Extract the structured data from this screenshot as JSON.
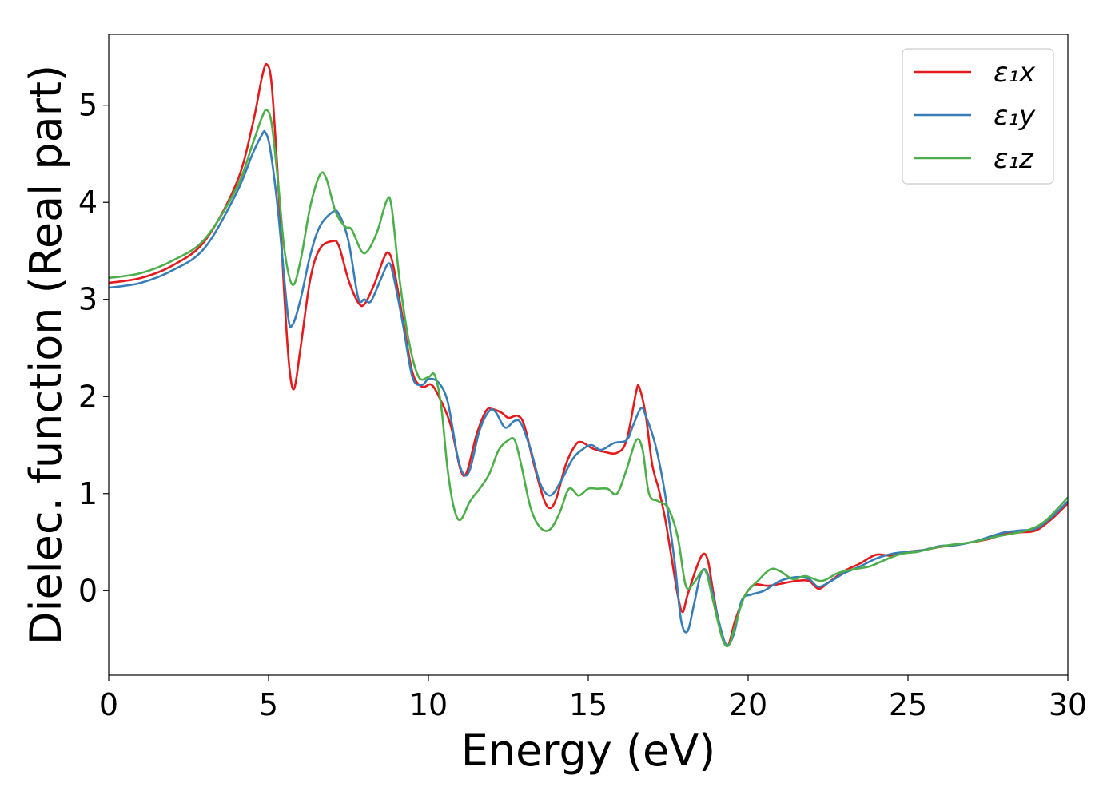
{
  "chart_data": {
    "type": "line",
    "xlabel": "Energy (eV)",
    "ylabel": "Dielec. function (Real part)",
    "xlim": [
      0,
      30
    ],
    "ylim": [
      -0.87,
      5.73
    ],
    "xticks": [
      "0",
      "5",
      "10",
      "15",
      "20",
      "25",
      "30"
    ],
    "yticks": [
      "0",
      "1",
      "2",
      "3",
      "4",
      "5"
    ],
    "grid": false,
    "legend_position": "top-right",
    "series": [
      {
        "name": "ε₁x",
        "color": "#e41a1c",
        "points": [
          [
            0,
            3.17
          ],
          [
            1,
            3.22
          ],
          [
            2,
            3.35
          ],
          [
            3,
            3.6
          ],
          [
            4,
            4.2
          ],
          [
            4.5,
            4.8
          ],
          [
            4.8,
            5.3
          ],
          [
            4.95,
            5.42
          ],
          [
            5.1,
            5.2
          ],
          [
            5.3,
            4.2
          ],
          [
            5.5,
            3.0
          ],
          [
            5.65,
            2.3
          ],
          [
            5.8,
            2.08
          ],
          [
            6,
            2.5
          ],
          [
            6.3,
            3.2
          ],
          [
            6.6,
            3.52
          ],
          [
            7,
            3.6
          ],
          [
            7.2,
            3.55
          ],
          [
            7.5,
            3.2
          ],
          [
            7.8,
            2.97
          ],
          [
            8,
            2.95
          ],
          [
            8.3,
            3.15
          ],
          [
            8.6,
            3.42
          ],
          [
            8.75,
            3.48
          ],
          [
            8.9,
            3.35
          ],
          [
            9.2,
            2.8
          ],
          [
            9.5,
            2.25
          ],
          [
            9.8,
            2.1
          ],
          [
            10.1,
            2.12
          ],
          [
            10.4,
            1.95
          ],
          [
            10.7,
            1.7
          ],
          [
            11,
            1.25
          ],
          [
            11.2,
            1.22
          ],
          [
            11.5,
            1.6
          ],
          [
            11.8,
            1.85
          ],
          [
            12,
            1.87
          ],
          [
            12.3,
            1.83
          ],
          [
            12.5,
            1.78
          ],
          [
            12.8,
            1.8
          ],
          [
            13,
            1.7
          ],
          [
            13.3,
            1.3
          ],
          [
            13.6,
            0.95
          ],
          [
            13.8,
            0.85
          ],
          [
            14,
            0.95
          ],
          [
            14.3,
            1.3
          ],
          [
            14.6,
            1.5
          ],
          [
            14.8,
            1.53
          ],
          [
            15.1,
            1.47
          ],
          [
            15.5,
            1.43
          ],
          [
            15.9,
            1.42
          ],
          [
            16.2,
            1.55
          ],
          [
            16.5,
            2.05
          ],
          [
            16.6,
            2.09
          ],
          [
            16.8,
            1.8
          ],
          [
            17,
            1.3
          ],
          [
            17.2,
            1.05
          ],
          [
            17.4,
            0.75
          ],
          [
            17.6,
            0.35
          ],
          [
            17.8,
            -0.05
          ],
          [
            17.95,
            -0.22
          ],
          [
            18.1,
            -0.05
          ],
          [
            18.4,
            0.25
          ],
          [
            18.6,
            0.38
          ],
          [
            18.75,
            0.3
          ],
          [
            18.9,
            0.0
          ],
          [
            19.1,
            -0.35
          ],
          [
            19.35,
            -0.57
          ],
          [
            19.6,
            -0.3
          ],
          [
            19.9,
            -0.05
          ],
          [
            20.2,
            0.06
          ],
          [
            20.6,
            0.05
          ],
          [
            21,
            0.07
          ],
          [
            21.5,
            0.1
          ],
          [
            21.9,
            0.1
          ],
          [
            22.2,
            0.02
          ],
          [
            22.5,
            0.08
          ],
          [
            23,
            0.2
          ],
          [
            23.5,
            0.28
          ],
          [
            24,
            0.37
          ],
          [
            24.5,
            0.36
          ],
          [
            25,
            0.4
          ],
          [
            25.5,
            0.42
          ],
          [
            26,
            0.45
          ],
          [
            26.5,
            0.47
          ],
          [
            27,
            0.5
          ],
          [
            27.5,
            0.53
          ],
          [
            28,
            0.58
          ],
          [
            28.5,
            0.6
          ],
          [
            29,
            0.62
          ],
          [
            29.5,
            0.74
          ],
          [
            30,
            0.9
          ]
        ]
      },
      {
        "name": "ε₁y",
        "color": "#377eb8",
        "points": [
          [
            0,
            3.12
          ],
          [
            1,
            3.17
          ],
          [
            2,
            3.3
          ],
          [
            3,
            3.53
          ],
          [
            4,
            4.1
          ],
          [
            4.5,
            4.5
          ],
          [
            4.8,
            4.7
          ],
          [
            4.9,
            4.72
          ],
          [
            5.05,
            4.55
          ],
          [
            5.3,
            3.9
          ],
          [
            5.6,
            2.85
          ],
          [
            5.75,
            2.74
          ],
          [
            6,
            3.0
          ],
          [
            6.3,
            3.45
          ],
          [
            6.6,
            3.75
          ],
          [
            7,
            3.9
          ],
          [
            7.2,
            3.88
          ],
          [
            7.5,
            3.6
          ],
          [
            7.8,
            3.02
          ],
          [
            8,
            3.0
          ],
          [
            8.2,
            2.98
          ],
          [
            8.5,
            3.2
          ],
          [
            8.75,
            3.37
          ],
          [
            8.9,
            3.25
          ],
          [
            9.2,
            2.75
          ],
          [
            9.5,
            2.2
          ],
          [
            9.8,
            2.12
          ],
          [
            10,
            2.18
          ],
          [
            10.3,
            2.15
          ],
          [
            10.6,
            1.95
          ],
          [
            10.9,
            1.4
          ],
          [
            11.1,
            1.2
          ],
          [
            11.3,
            1.25
          ],
          [
            11.6,
            1.65
          ],
          [
            11.9,
            1.85
          ],
          [
            12.1,
            1.84
          ],
          [
            12.4,
            1.68
          ],
          [
            12.7,
            1.75
          ],
          [
            12.9,
            1.72
          ],
          [
            13.2,
            1.45
          ],
          [
            13.5,
            1.1
          ],
          [
            13.8,
            0.98
          ],
          [
            14.1,
            1.1
          ],
          [
            14.5,
            1.35
          ],
          [
            14.8,
            1.45
          ],
          [
            15.1,
            1.5
          ],
          [
            15.4,
            1.45
          ],
          [
            15.8,
            1.52
          ],
          [
            16.2,
            1.55
          ],
          [
            16.4,
            1.7
          ],
          [
            16.65,
            1.88
          ],
          [
            16.8,
            1.8
          ],
          [
            17.1,
            1.5
          ],
          [
            17.4,
            1.0
          ],
          [
            17.7,
            0.3
          ],
          [
            17.9,
            -0.3
          ],
          [
            18.1,
            -0.42
          ],
          [
            18.3,
            -0.15
          ],
          [
            18.5,
            0.15
          ],
          [
            18.65,
            0.22
          ],
          [
            18.8,
            0.1
          ],
          [
            19.0,
            -0.2
          ],
          [
            19.3,
            -0.55
          ],
          [
            19.55,
            -0.45
          ],
          [
            19.8,
            -0.1
          ],
          [
            20.1,
            -0.04
          ],
          [
            20.5,
            0.0
          ],
          [
            21,
            0.1
          ],
          [
            21.5,
            0.14
          ],
          [
            21.9,
            0.12
          ],
          [
            22.2,
            0.04
          ],
          [
            22.6,
            0.1
          ],
          [
            23,
            0.18
          ],
          [
            23.5,
            0.25
          ],
          [
            24,
            0.33
          ],
          [
            24.5,
            0.38
          ],
          [
            25,
            0.4
          ],
          [
            25.5,
            0.42
          ],
          [
            26,
            0.46
          ],
          [
            26.5,
            0.47
          ],
          [
            27,
            0.5
          ],
          [
            27.5,
            0.55
          ],
          [
            28,
            0.6
          ],
          [
            28.5,
            0.62
          ],
          [
            29,
            0.64
          ],
          [
            29.5,
            0.76
          ],
          [
            30,
            0.92
          ]
        ]
      },
      {
        "name": "ε₁z",
        "color": "#4daf4a",
        "points": [
          [
            0,
            3.22
          ],
          [
            1,
            3.27
          ],
          [
            2,
            3.4
          ],
          [
            3,
            3.62
          ],
          [
            4,
            4.15
          ],
          [
            4.5,
            4.6
          ],
          [
            4.8,
            4.88
          ],
          [
            4.95,
            4.95
          ],
          [
            5.1,
            4.8
          ],
          [
            5.3,
            4.2
          ],
          [
            5.5,
            3.5
          ],
          [
            5.75,
            3.15
          ],
          [
            6,
            3.4
          ],
          [
            6.3,
            3.95
          ],
          [
            6.6,
            4.28
          ],
          [
            6.8,
            4.25
          ],
          [
            7.1,
            3.9
          ],
          [
            7.4,
            3.75
          ],
          [
            7.6,
            3.72
          ],
          [
            7.9,
            3.5
          ],
          [
            8.1,
            3.5
          ],
          [
            8.4,
            3.7
          ],
          [
            8.7,
            4.02
          ],
          [
            8.85,
            3.95
          ],
          [
            9.1,
            3.2
          ],
          [
            9.4,
            2.55
          ],
          [
            9.7,
            2.2
          ],
          [
            10,
            2.2
          ],
          [
            10.2,
            2.22
          ],
          [
            10.4,
            1.9
          ],
          [
            10.6,
            1.25
          ],
          [
            10.8,
            0.85
          ],
          [
            11,
            0.73
          ],
          [
            11.3,
            0.92
          ],
          [
            11.6,
            1.05
          ],
          [
            11.9,
            1.2
          ],
          [
            12.2,
            1.45
          ],
          [
            12.5,
            1.55
          ],
          [
            12.7,
            1.55
          ],
          [
            12.9,
            1.3
          ],
          [
            13.2,
            0.85
          ],
          [
            13.5,
            0.65
          ],
          [
            13.8,
            0.63
          ],
          [
            14.1,
            0.8
          ],
          [
            14.4,
            1.05
          ],
          [
            14.7,
            0.98
          ],
          [
            15,
            1.05
          ],
          [
            15.3,
            1.05
          ],
          [
            15.6,
            1.05
          ],
          [
            15.9,
            1.0
          ],
          [
            16.2,
            1.25
          ],
          [
            16.5,
            1.55
          ],
          [
            16.7,
            1.45
          ],
          [
            16.9,
            1.0
          ],
          [
            17.2,
            0.92
          ],
          [
            17.5,
            0.85
          ],
          [
            17.8,
            0.55
          ],
          [
            18.05,
            0.05
          ],
          [
            18.3,
            0.08
          ],
          [
            18.55,
            0.2
          ],
          [
            18.7,
            0.18
          ],
          [
            18.9,
            -0.1
          ],
          [
            19.2,
            -0.5
          ],
          [
            19.4,
            -0.56
          ],
          [
            19.6,
            -0.35
          ],
          [
            19.9,
            -0.05
          ],
          [
            20.3,
            0.1
          ],
          [
            20.7,
            0.22
          ],
          [
            21,
            0.2
          ],
          [
            21.4,
            0.12
          ],
          [
            21.8,
            0.15
          ],
          [
            22.3,
            0.1
          ],
          [
            22.8,
            0.18
          ],
          [
            23.3,
            0.22
          ],
          [
            23.8,
            0.25
          ],
          [
            24.3,
            0.32
          ],
          [
            24.8,
            0.38
          ],
          [
            25.3,
            0.4
          ],
          [
            25.8,
            0.44
          ],
          [
            26.3,
            0.47
          ],
          [
            26.8,
            0.49
          ],
          [
            27.3,
            0.52
          ],
          [
            27.8,
            0.56
          ],
          [
            28.3,
            0.59
          ],
          [
            28.8,
            0.63
          ],
          [
            29.3,
            0.72
          ],
          [
            30,
            0.96
          ]
        ]
      }
    ]
  }
}
